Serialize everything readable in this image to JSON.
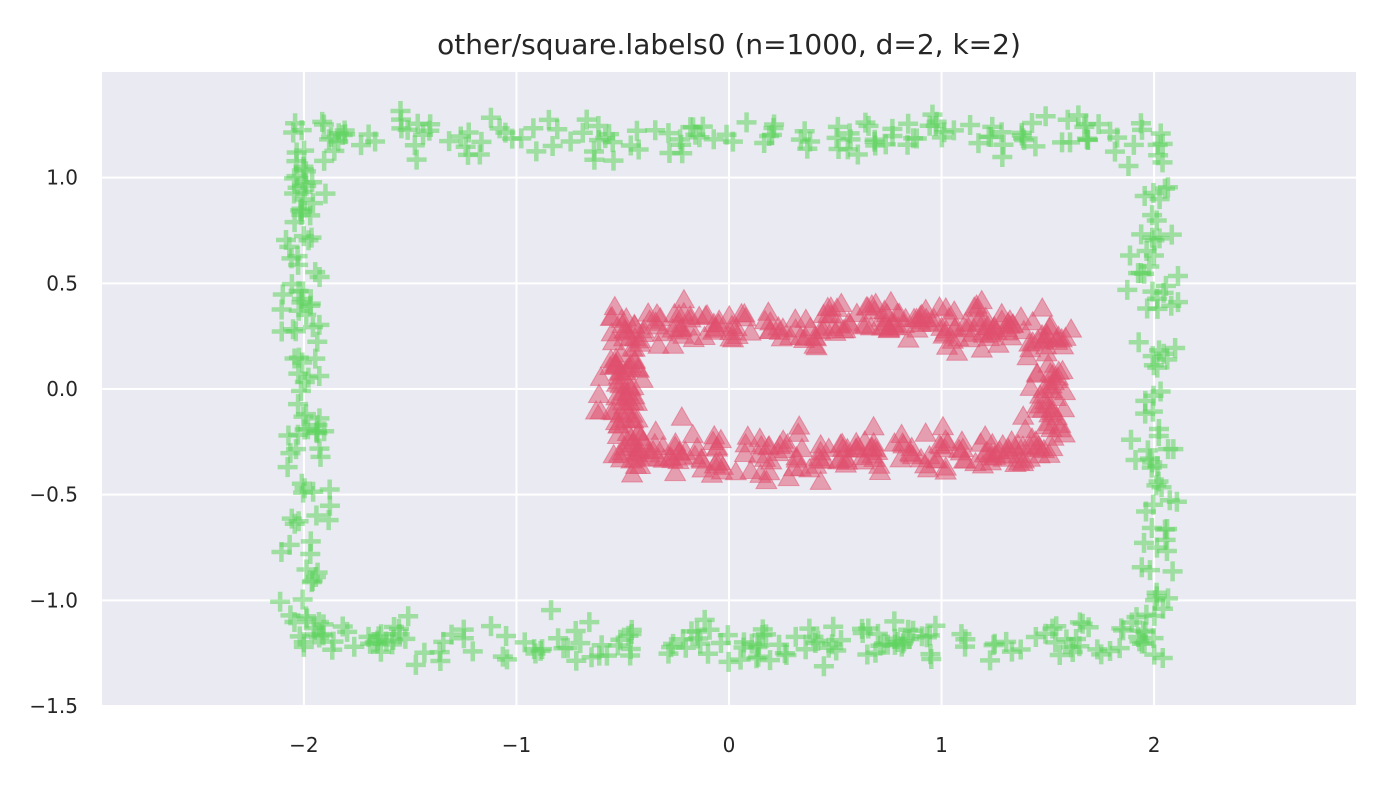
{
  "chart_data": {
    "type": "scatter",
    "title": "other/square.labels0 (n=1000, d=2, k=2)",
    "xlabel": "",
    "ylabel": "",
    "xlim": [
      -2.95,
      2.95
    ],
    "ylim": [
      -1.5,
      1.5
    ],
    "x_ticks": [
      -2,
      -1,
      0,
      1,
      2
    ],
    "x_tick_labels": [
      "−2",
      "−1",
      "0",
      "1",
      "2"
    ],
    "y_ticks": [
      -1.5,
      -1.0,
      -0.5,
      0.0,
      0.5,
      1.0
    ],
    "y_tick_labels": [
      "−1.5",
      "−1.0",
      "−0.5",
      "0.0",
      "0.5",
      "1.0"
    ],
    "grid": true,
    "background_color": "#eaeaf2",
    "grid_color": "#ffffff",
    "series": [
      {
        "marker": "plus",
        "color": "#5fd35f",
        "alpha": 0.55,
        "shape": "rectangle outline, noise ~0.05",
        "x_range": [
          -2.0,
          2.0
        ],
        "y_range": [
          -1.2,
          1.2
        ],
        "n_points": 500
      },
      {
        "marker": "triangle",
        "color": "#e0506e",
        "alpha": 0.5,
        "shape": "rectangle outline, noise ~0.05",
        "x_range": [
          -0.5,
          1.5
        ],
        "y_range": [
          -0.3,
          0.3
        ],
        "n_points": 500
      }
    ]
  }
}
